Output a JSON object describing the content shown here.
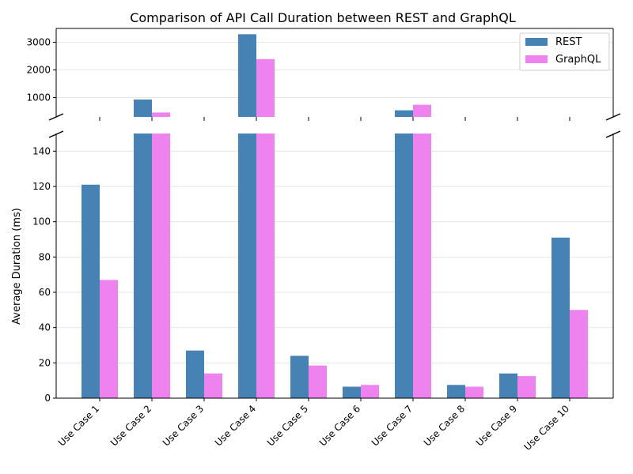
{
  "chart_data": {
    "type": "bar",
    "title": "Comparison of API Call Duration between REST and GraphQL",
    "xlabel": "",
    "ylabel": "Average Duration (ms)",
    "categories": [
      "Use Case 1",
      "Use Case 2",
      "Use Case 3",
      "Use Case 4",
      "Use Case 5",
      "Use Case 6",
      "Use Case 7",
      "Use Case 8",
      "Use Case 9",
      "Use Case 10"
    ],
    "series": [
      {
        "name": "REST",
        "color": "#4682b4",
        "values": [
          121,
          930,
          27,
          3290,
          24,
          6.5,
          540,
          7.5,
          14,
          91
        ]
      },
      {
        "name": "GraphQL",
        "color": "#ee82ee",
        "values": [
          67,
          460,
          14,
          2390,
          18.5,
          7.5,
          740,
          6.5,
          12.5,
          50
        ]
      }
    ],
    "broken_axis": true,
    "lower_ylim": [
      0,
      150
    ],
    "upper_ylim": [
      300,
      3500
    ],
    "lower_yticks": [
      0,
      20,
      40,
      60,
      80,
      100,
      120,
      140
    ],
    "upper_yticks": [
      1000,
      2000,
      3000
    ],
    "grid": "horizontal",
    "legend_position": "top-right"
  }
}
